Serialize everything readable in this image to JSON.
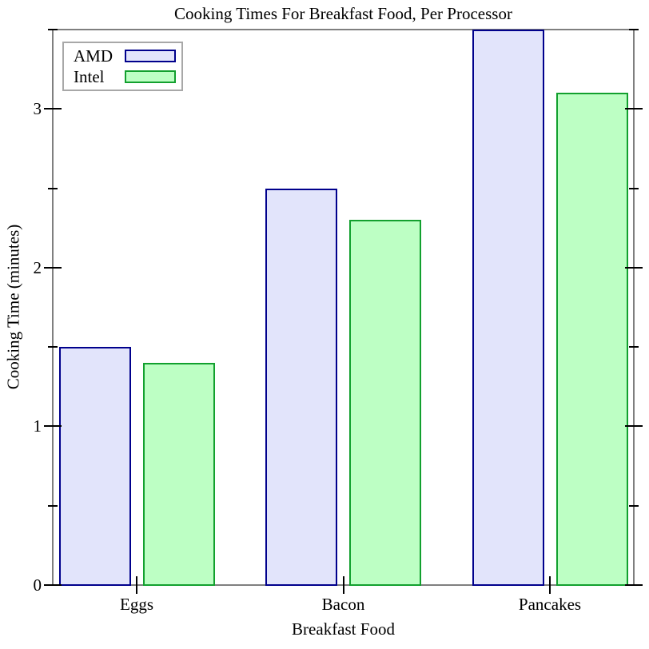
{
  "chart_data": {
    "type": "bar",
    "title": "Cooking Times For Breakfast Food, Per Processor",
    "xlabel": "Breakfast Food",
    "ylabel": "Cooking Time (minutes)",
    "categories": [
      "Eggs",
      "Bacon",
      "Pancakes"
    ],
    "series": [
      {
        "name": "AMD",
        "values": [
          1.5,
          2.5,
          3.5
        ],
        "fill": "#e2e4fb",
        "stroke": "#00008c"
      },
      {
        "name": "Intel",
        "values": [
          1.4,
          2.3,
          3.1
        ],
        "fill": "#bdffc4",
        "stroke": "#12a02e"
      }
    ],
    "ylim": [
      0,
      3.5
    ],
    "yticks_major": [
      0,
      1,
      2,
      3
    ],
    "yticks_minor": [
      0.5,
      1.5,
      2.5,
      3.5
    ],
    "grid": false,
    "legend_position": "top-left",
    "colors": {
      "plot_border": "#7f7f7f",
      "tick": "#000000",
      "legend_border": "#a8a8a8",
      "background": "#ffffff"
    }
  }
}
